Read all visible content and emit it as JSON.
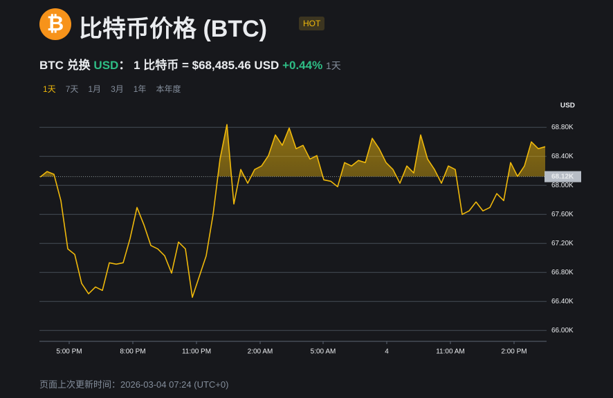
{
  "header": {
    "icon": "₿",
    "title": "比特币价格",
    "symbol": "(BTC)",
    "badge": "HOT"
  },
  "converter": {
    "base": "BTC",
    "word": "兑换",
    "quote": "USD",
    "colon": "：",
    "amount": "1 比特币 = $68,485.46 USD",
    "change": "+0.44%",
    "period": "1天"
  },
  "tabs": {
    "items": [
      "1天",
      "7天",
      "1月",
      "3月",
      "1年",
      "本年度"
    ],
    "active": 0
  },
  "chart_data": {
    "type": "line",
    "unit": "USD",
    "color": "#f0b90b",
    "values": [
      68114,
      68190,
      68152,
      67790,
      67124,
      67048,
      66648,
      66505,
      66600,
      66552,
      66933,
      66914,
      66933,
      67267,
      67695,
      67457,
      67171,
      67124,
      67029,
      66790,
      67219,
      67124,
      66457,
      66743,
      67029,
      67600,
      68362,
      68838,
      67743,
      68219,
      68029,
      68219,
      68267,
      68410,
      68695,
      68552,
      68790,
      68505,
      68552,
      68362,
      68410,
      68076,
      68057,
      67981,
      68314,
      68267,
      68343,
      68314,
      68648,
      68505,
      68314,
      68219,
      68029,
      68267,
      68171,
      68695,
      68362,
      68219,
      68029,
      68267,
      68219,
      67600,
      67648,
      67771,
      67648,
      67695,
      67886,
      67790,
      68314,
      68124,
      68267,
      68600,
      68505,
      68533
    ],
    "reference": {
      "value": 68120,
      "label": "68.12K"
    },
    "xlim": [
      0,
      73
    ],
    "xticks": [
      {
        "value": 4.2,
        "label": "5:00 PM"
      },
      {
        "value": 13.4,
        "label": "8:00 PM"
      },
      {
        "value": 22.6,
        "label": "11:00 PM"
      },
      {
        "value": 31.8,
        "label": "2:00 AM"
      },
      {
        "value": 40.9,
        "label": "5:00 AM"
      },
      {
        "value": 50.1,
        "label": "4"
      },
      {
        "value": 59.3,
        "label": "11:00 AM"
      },
      {
        "value": 68.5,
        "label": "2:00 PM"
      }
    ],
    "ylim": [
      65850,
      69050
    ],
    "yticks": [
      {
        "value": 66000,
        "label": "66.00K"
      },
      {
        "value": 66400,
        "label": "66.40K"
      },
      {
        "value": 66800,
        "label": "66.80K"
      },
      {
        "value": 67200,
        "label": "67.20K"
      },
      {
        "value": 67600,
        "label": "67.60K"
      },
      {
        "value": 68000,
        "label": "68.00K"
      },
      {
        "value": 68400,
        "label": "68.40K"
      },
      {
        "value": 68800,
        "label": "68.80K"
      }
    ],
    "grid": true
  },
  "footer": {
    "updated": "页面上次更新时间：2026-03-04 07:24 (UTC+0)"
  }
}
